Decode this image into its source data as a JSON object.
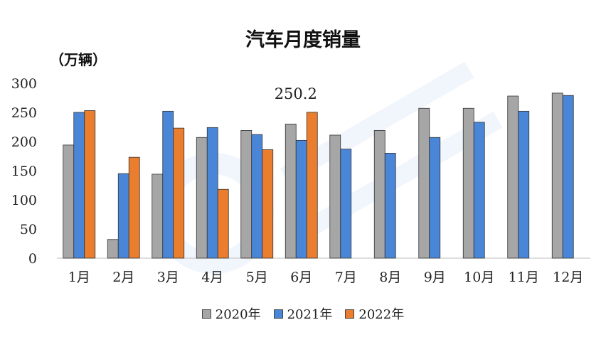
{
  "chart_data": {
    "type": "bar",
    "title": "汽车月度销量",
    "unit_label": "（万辆）",
    "categories": [
      "1月",
      "2月",
      "3月",
      "4月",
      "5月",
      "6月",
      "7月",
      "8月",
      "9月",
      "10月",
      "11月",
      "12月"
    ],
    "series": [
      {
        "name": "2020年",
        "color": "#a6a6a6",
        "values": [
          194,
          32,
          144,
          207,
          219,
          230,
          211,
          219,
          257,
          257,
          278,
          283
        ]
      },
      {
        "name": "2021年",
        "color": "#4a86d8",
        "values": [
          250,
          145,
          252,
          224,
          212,
          202,
          187,
          180,
          207,
          233,
          252,
          279
        ]
      },
      {
        "name": "2022年",
        "color": "#ea7d2e",
        "values": [
          253,
          173,
          223,
          118,
          186,
          250.2,
          null,
          null,
          null,
          null,
          null,
          null
        ]
      }
    ],
    "ylim": [
      0,
      300
    ],
    "yticks": [
      0,
      50,
      100,
      150,
      200,
      250,
      300
    ],
    "annotations": [
      {
        "text": "250.2"
      }
    ],
    "legend_position": "bottom",
    "grid": false
  }
}
